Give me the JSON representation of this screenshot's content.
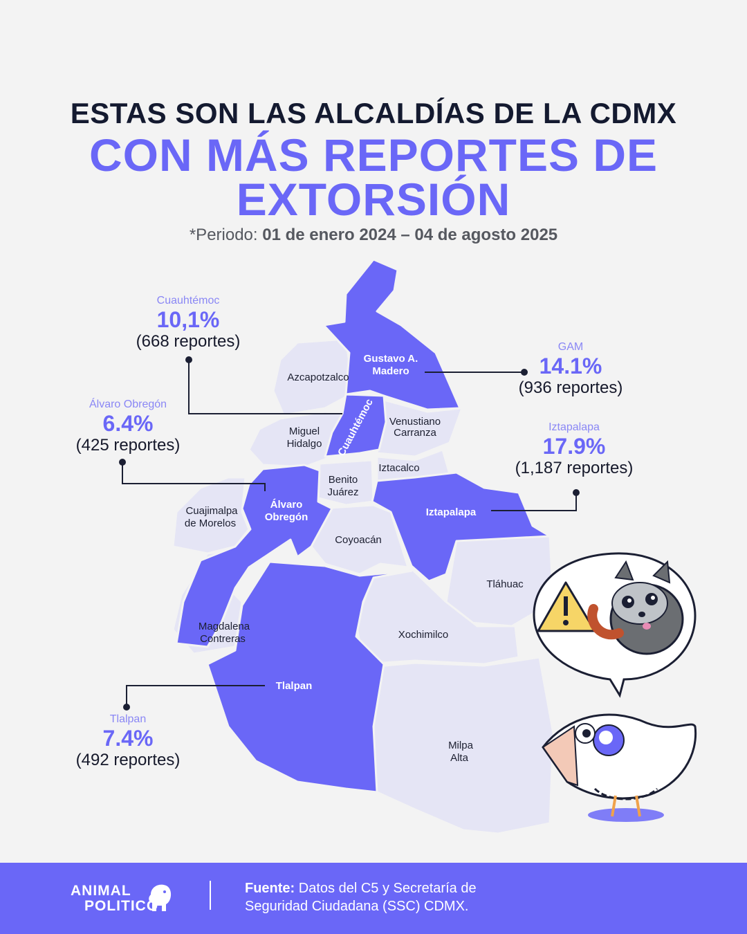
{
  "title_line1": "ESTAS SON LAS ALCALDÍAS DE LA CDMX",
  "title_line2a": "CON MÁS REPORTES DE",
  "title_line2b": "EXTORSIÓN",
  "period_prefix": "*Periodo: ",
  "period_range": "01 de enero 2024 – 04 de agosto 2025",
  "regions": {
    "gam": "Gustavo A.",
    "gam2": "Madero",
    "azcapotzalco": "Azcapotzalco",
    "cuauhtemoc": "Cuauhtémoc",
    "venustiano1": "Venustiano",
    "venustiano2": "Carranza",
    "miguel1": "Miguel",
    "miguel2": "Hidalgo",
    "iztacalco": "Iztacalco",
    "benito1": "Benito",
    "benito2": "Juárez",
    "alvaro1": "Álvaro",
    "alvaro2": "Obregón",
    "cuajimalpa1": "Cuajimalpa",
    "cuajimalpa2": "de Morelos",
    "iztapalapa": "Iztapalapa",
    "coyoacan": "Coyoacán",
    "tlahuac": "Tláhuac",
    "magdalena1": "Magdalena",
    "magdalena2": "Contreras",
    "xochimilco": "Xochimilco",
    "tlalpan": "Tlalpan",
    "milpa1": "Milpa",
    "milpa2": "Alta"
  },
  "callouts": {
    "cuauhtemoc": {
      "name": "Cuauhtémoc",
      "pct": "10,1%",
      "reports": "(668 reportes)"
    },
    "gam": {
      "name": "GAM",
      "pct": "14.1%",
      "reports": "(936 reportes)"
    },
    "alvaro": {
      "name": "Álvaro Obregón",
      "pct": "6.4%",
      "reports": "(425 reportes)"
    },
    "iztapalapa": {
      "name": "Iztapalapa",
      "pct": "17.9%",
      "reports": "(1,187 reportes)"
    },
    "tlalpan": {
      "name": "Tlalpan",
      "pct": "7.4%",
      "reports": "(492 reportes)"
    }
  },
  "footer": {
    "logo_line1": "ANIMAL",
    "logo_line2": "POLITICO",
    "source_label": "Fuente:",
    "source_text1": " Datos del C5 y Secretaría de",
    "source_text2": "Seguridad Ciudadana (SSC) CDMX."
  },
  "colors": {
    "accent": "#6a67f7",
    "light_region": "#e5e5f5",
    "background": "#f3f3f3"
  },
  "icons": [
    "warning-icon",
    "raccoon-illustration",
    "chicken-illustration",
    "elephant-logo-icon"
  ]
}
